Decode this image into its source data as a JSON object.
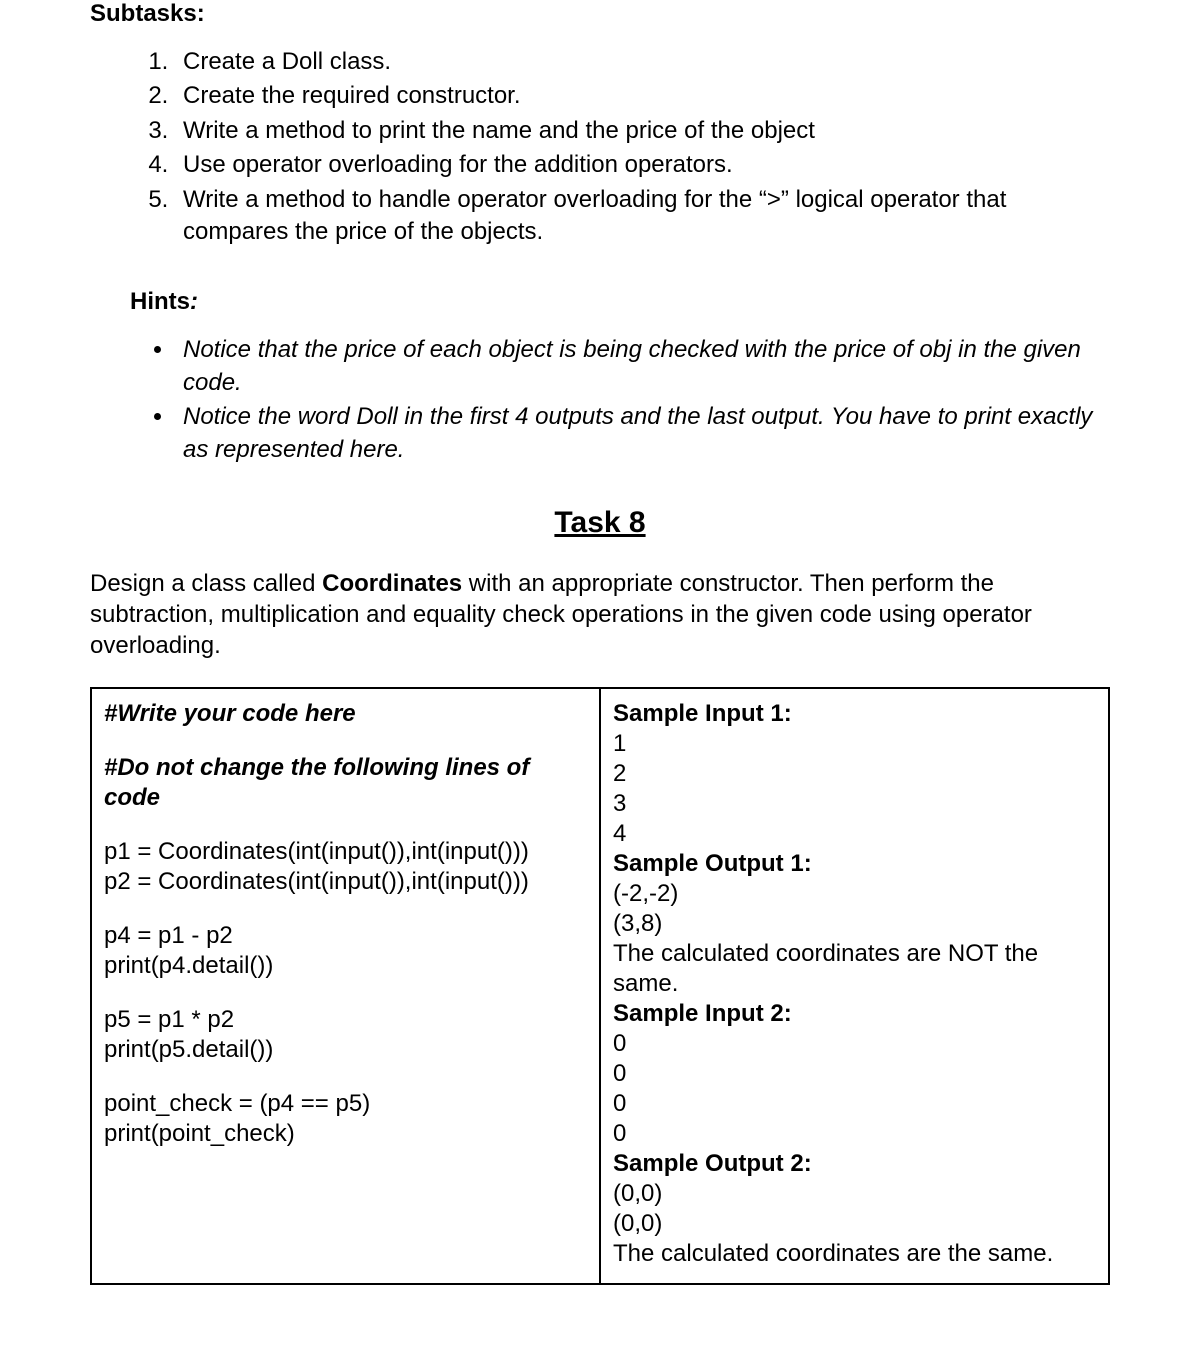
{
  "subtasks_heading": "Subtasks",
  "subtasks": [
    "Create a Doll class.",
    "Create the required constructor.",
    "Write a method to print the name and the price of the object",
    "Use operator overloading for the addition operators.",
    "Write a method to handle operator overloading for the “>” logical operator that compares the price of the objects."
  ],
  "hints_heading": "Hints",
  "hints": [
    "Notice that the price of each object is being checked with the price of obj in the given code.",
    "Notice the word Doll in the first 4 outputs and the last output. You have to print exactly as represented here."
  ],
  "task_title": "Task 8",
  "task_desc_pre": "Design a class called ",
  "task_desc_bold": "Coordinates",
  "task_desc_post": " with an appropriate constructor. Then perform the subtraction, multiplication and equality check operations in the given code using operator overloading.",
  "left_code": {
    "l1": "#Write your code here",
    "l2": "#Do not change the following lines of code",
    "l3": "p1 = Coordinates(int(input()),int(input()))",
    "l4": "p2 = Coordinates(int(input()),int(input()))",
    "l5": "p4 = p1 - p2",
    "l6": "print(p4.detail())",
    "l7": "p5 = p1 * p2",
    "l8": "print(p5.detail())",
    "l9": "point_check = (p4 == p5)",
    "l10": "print(point_check)"
  },
  "right_code": {
    "si1_label": "Sample Input 1:",
    "si1_1": "1",
    "si1_2": "2",
    "si1_3": "3",
    "si1_4": "4",
    "so1_label": "Sample Output 1:",
    "so1_1": "(-2,-2)",
    "so1_2": "(3,8)",
    "so1_3": "The calculated coordinates are NOT the same.",
    "si2_label": "Sample Input 2:",
    "si2_1": "0",
    "si2_2": "0",
    "si2_3": "0",
    "si2_4": "0",
    "so2_label": "Sample Output 2:",
    "so2_1": "(0,0)",
    "so2_2": "(0,0)",
    "so2_3": "The calculated coordinates are the same."
  }
}
